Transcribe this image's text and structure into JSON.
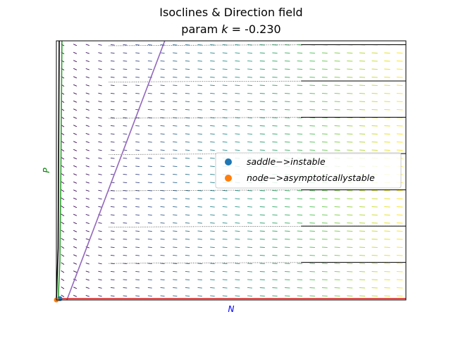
{
  "chart_data": {
    "type": "direction-field",
    "title": "Isoclines & Direction field",
    "subtitle": "param $k$ = -0.230",
    "subtitle_parts": {
      "prefix": "param ",
      "symbol": "k",
      "suffix": " = -0.230"
    },
    "xlabel": "N",
    "ylabel": "P",
    "xlabel_color": "#0000ff",
    "ylabel_color": "#008000",
    "xlim": [
      0,
      10
    ],
    "ylim": [
      0,
      10
    ],
    "ticks_visible": false,
    "grid": false,
    "isoclines": [
      {
        "color": "#9467bd",
        "points": [
          [
            0.3,
            0
          ],
          [
            3.1,
            10
          ]
        ]
      },
      {
        "color": "#2ca02c",
        "points": [
          [
            0.05,
            0
          ],
          [
            0.1,
            1.5
          ],
          [
            0.13,
            5
          ],
          [
            0.16,
            10
          ]
        ]
      },
      {
        "color": "#000000",
        "points": [
          [
            0.0,
            0
          ],
          [
            0.05,
            2
          ],
          [
            0.08,
            10
          ]
        ]
      },
      {
        "color": "#d62728",
        "points": [
          [
            0,
            0.05
          ],
          [
            10,
            0.05
          ]
        ]
      }
    ],
    "trajectory_levels": [
      1.45,
      2.85,
      4.25,
      5.65,
      7.05,
      8.45,
      9.85
    ],
    "field": {
      "nx": 28,
      "ny": 32,
      "palette": [
        "#440154",
        "#3b528b",
        "#21918c",
        "#5ec962",
        "#fde725"
      ]
    },
    "equilibria": [
      {
        "label": "$saddle->instable$",
        "text": "saddle−>instable",
        "color": "#1f77b4",
        "x": 0.1,
        "y": 0.05
      },
      {
        "label": "$node->asymptoticallystable$",
        "text": "node−>asymptoticallystable",
        "color": "#ff7f0e",
        "x": 0.0,
        "y": 0.0
      }
    ],
    "legend_position": "center-right"
  }
}
